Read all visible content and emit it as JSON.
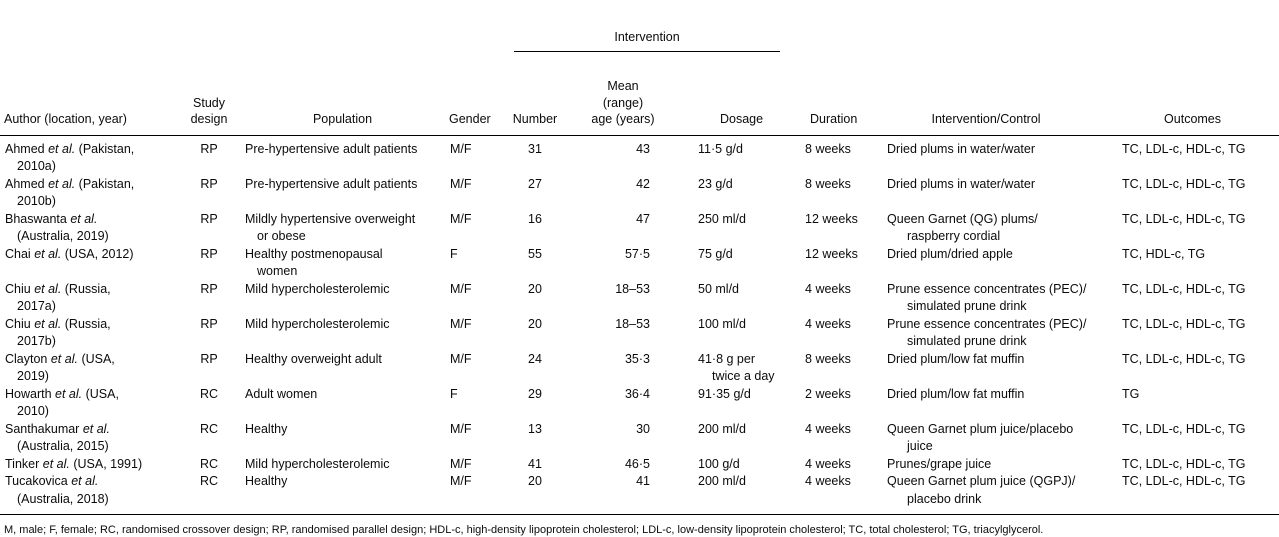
{
  "table": {
    "spanner_label": "Intervention",
    "headers": [
      "Author (location, year)",
      "Study\ndesign",
      "Population",
      "Gender",
      "Number",
      "Mean (range)\nage (years)",
      "Dosage",
      "Duration",
      "Intervention/Control",
      "Outcomes"
    ],
    "rows": [
      {
        "author": [
          "Ahmed et al. (Pakistan,",
          "2010a)"
        ],
        "design": "RP",
        "population": [
          "Pre-hypertensive adult patients"
        ],
        "gender": "M/F",
        "number": "31",
        "age": "43",
        "dosage": [
          "11·5 g/d"
        ],
        "duration": "8 weeks",
        "intervention": [
          "Dried plums in water/water"
        ],
        "outcomes": "TC, LDL-c, HDL-c, TG"
      },
      {
        "author": [
          "Ahmed et al. (Pakistan,",
          "2010b)"
        ],
        "design": "RP",
        "population": [
          "Pre-hypertensive adult patients"
        ],
        "gender": "M/F",
        "number": "27",
        "age": "42",
        "dosage": [
          "23 g/d"
        ],
        "duration": "8 weeks",
        "intervention": [
          "Dried plums in water/water"
        ],
        "outcomes": "TC, LDL-c, HDL-c, TG"
      },
      {
        "author": [
          "Bhaswanta et al.",
          "(Australia, 2019)"
        ],
        "design": "RP",
        "population": [
          "Mildly hypertensive overweight",
          "or obese"
        ],
        "gender": "M/F",
        "number": "16",
        "age": "47",
        "dosage": [
          "250 ml/d"
        ],
        "duration": "12 weeks",
        "intervention": [
          "Queen Garnet (QG) plums/",
          "raspberry cordial"
        ],
        "outcomes": "TC, LDL-c, HDL-c, TG"
      },
      {
        "author": [
          "Chai et al. (USA, 2012)"
        ],
        "design": "RP",
        "population": [
          "Healthy postmenopausal",
          "women"
        ],
        "gender": "F",
        "number": "55",
        "age": "57·5",
        "dosage": [
          "75 g/d"
        ],
        "duration": "12 weeks",
        "intervention": [
          "Dried plum/dried apple"
        ],
        "outcomes": "TC, HDL-c, TG"
      },
      {
        "author": [
          "Chiu et al. (Russia,",
          "2017a)"
        ],
        "design": "RP",
        "population": [
          "Mild hypercholesterolemic"
        ],
        "gender": "M/F",
        "number": "20",
        "age": "18–53",
        "dosage": [
          "50 ml/d"
        ],
        "duration": "4 weeks",
        "intervention": [
          "Prune essence concentrates (PEC)/",
          "simulated prune drink"
        ],
        "outcomes": "TC, LDL-c, HDL-c, TG"
      },
      {
        "author": [
          "Chiu et al. (Russia,",
          "2017b)"
        ],
        "design": "RP",
        "population": [
          "Mild hypercholesterolemic"
        ],
        "gender": "M/F",
        "number": "20",
        "age": "18–53",
        "dosage": [
          "100 ml/d"
        ],
        "duration": "4 weeks",
        "intervention": [
          "Prune essence concentrates (PEC)/",
          "simulated prune drink"
        ],
        "outcomes": "TC, LDL-c, HDL-c, TG"
      },
      {
        "author": [
          "Clayton et al. (USA,",
          "2019)"
        ],
        "design": "RP",
        "population": [
          "Healthy overweight adult"
        ],
        "gender": "M/F",
        "number": "24",
        "age": "35·3",
        "dosage": [
          "41·8 g per",
          "twice a day"
        ],
        "duration": "8 weeks",
        "intervention": [
          "Dried plum/low fat muffin"
        ],
        "outcomes": "TC, LDL-c, HDL-c, TG"
      },
      {
        "author": [
          "Howarth et al. (USA,",
          "2010)"
        ],
        "design": "RC",
        "population": [
          "Adult women"
        ],
        "gender": "F",
        "number": "29",
        "age": "36·4",
        "dosage": [
          "91·35 g/d"
        ],
        "duration": "2 weeks",
        "intervention": [
          "Dried plum/low fat muffin"
        ],
        "outcomes": "TG"
      },
      {
        "author": [
          "Santhakumar et al.",
          "(Australia, 2015)"
        ],
        "design": "RC",
        "population": [
          "Healthy"
        ],
        "gender": "M/F",
        "number": "13",
        "age": "30",
        "dosage": [
          "200 ml/d"
        ],
        "duration": "4 weeks",
        "intervention": [
          "Queen Garnet plum juice/placebo",
          "juice"
        ],
        "outcomes": "TC, LDL-c, HDL-c, TG"
      },
      {
        "author": [
          "Tinker et al. (USA, 1991)"
        ],
        "design": "RC",
        "population": [
          "Mild hypercholesterolemic"
        ],
        "gender": "M/F",
        "number": "41",
        "age": "46·5",
        "dosage": [
          "100 g/d"
        ],
        "duration": "4 weeks",
        "intervention": [
          "Prunes/grape juice"
        ],
        "outcomes": "TC, LDL-c, HDL-c, TG"
      },
      {
        "author": [
          "Tucakovica et al.",
          "(Australia, 2018)"
        ],
        "design": "RC",
        "population": [
          "Healthy"
        ],
        "gender": "M/F",
        "number": "20",
        "age": "41",
        "dosage": [
          "200 ml/d"
        ],
        "duration": "4 weeks",
        "intervention": [
          "Queen Garnet plum juice (QGPJ)/",
          "placebo drink"
        ],
        "outcomes": "TC, LDL-c, HDL-c, TG"
      }
    ]
  },
  "footnote": "M, male; F, female; RC, randomised crossover design; RP, randomised parallel design; HDL-c, high-density lipoprotein cholesterol; LDL-c, low-density lipoprotein cholesterol; TC, total cholesterol; TG, triacylglycerol."
}
